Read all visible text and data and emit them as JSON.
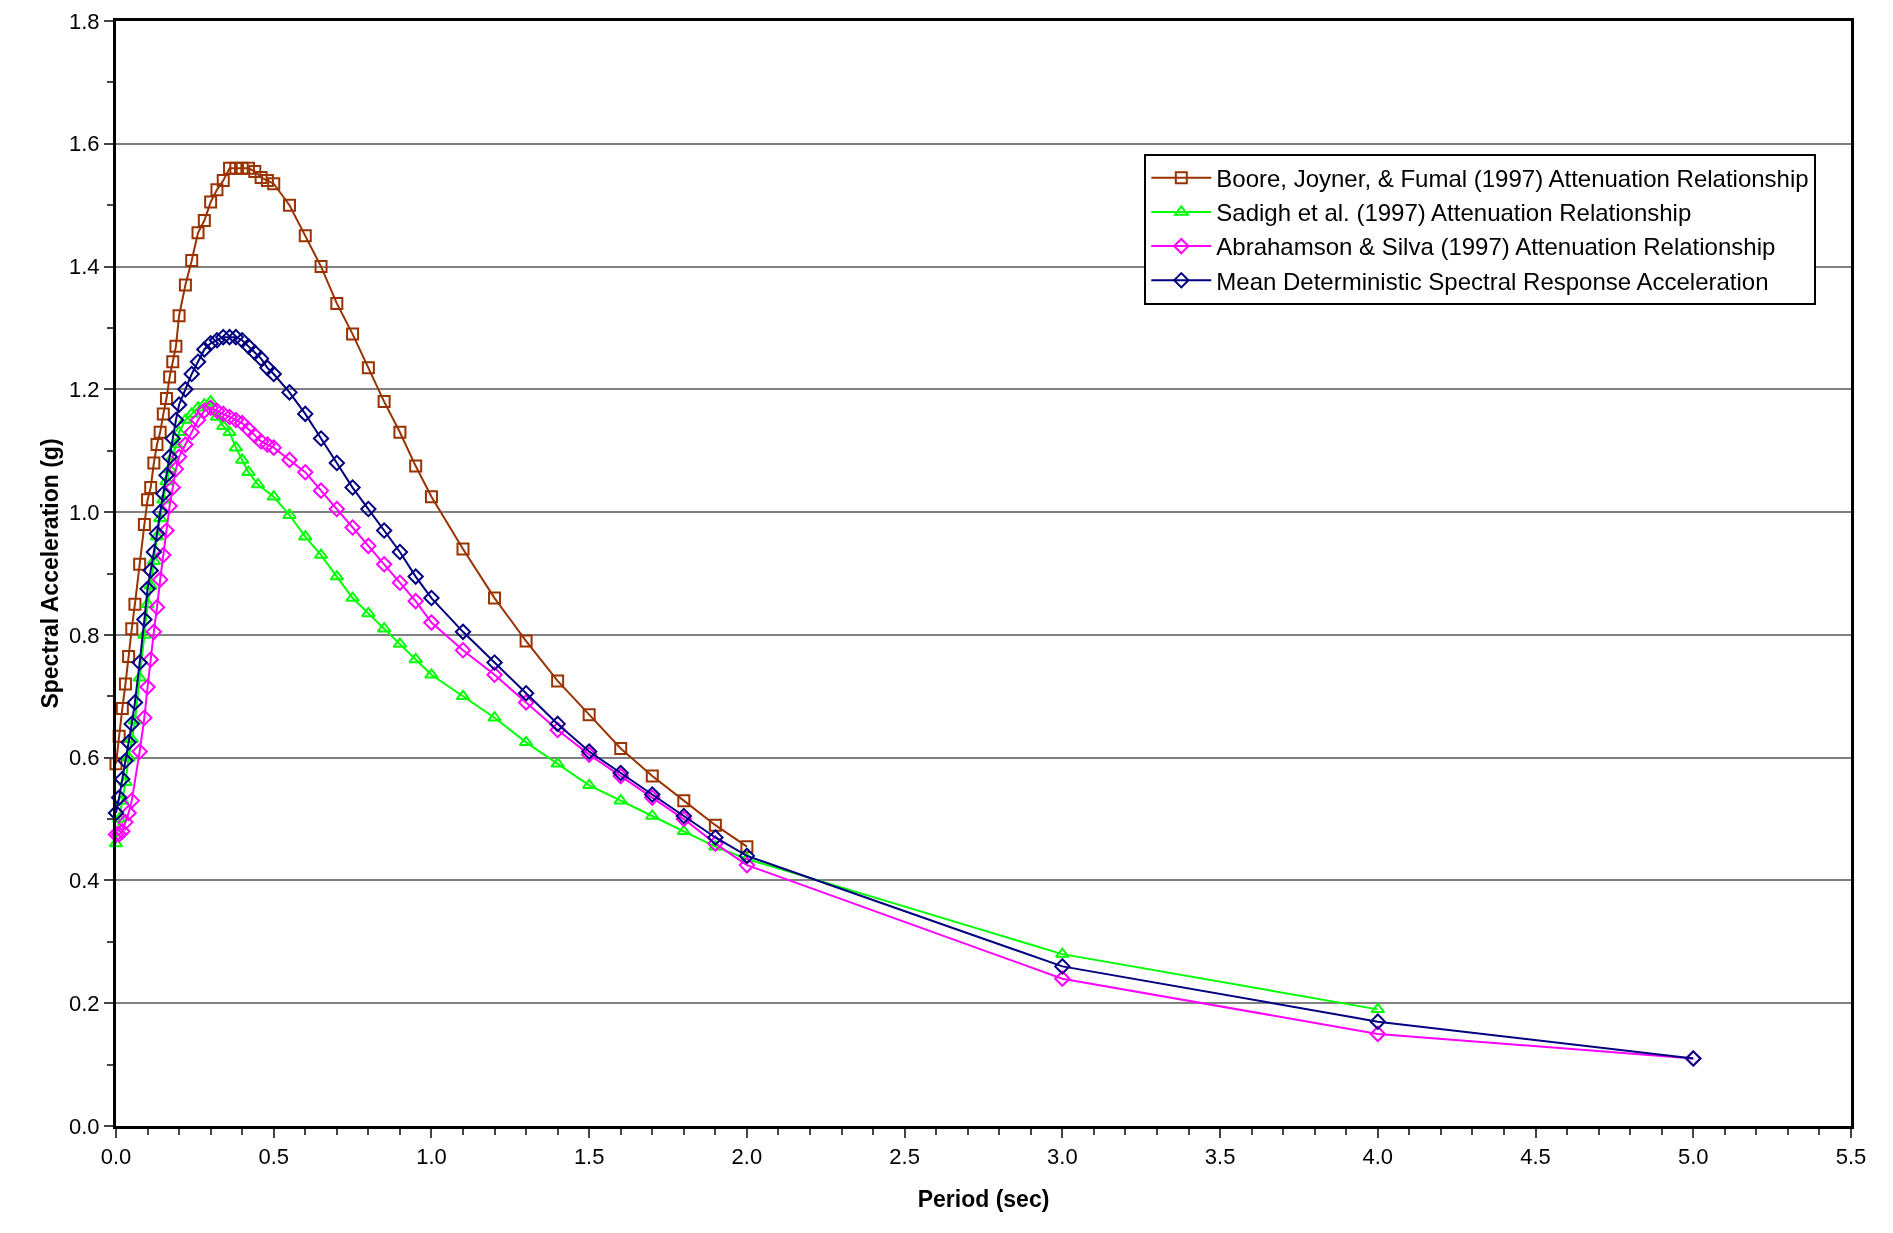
{
  "chart_data": {
    "type": "line",
    "xlabel": "Period (sec)",
    "ylabel": "Spectral Acceleration (g)",
    "xlim": [
      0,
      5.5
    ],
    "xticks": [
      {
        "value": 0,
        "label": "0.0"
      },
      {
        "value": 0.5,
        "label": "0.5"
      },
      {
        "value": 1,
        "label": "1.0"
      },
      {
        "value": 1.5,
        "label": "1.5"
      },
      {
        "value": 2,
        "label": "2.0"
      },
      {
        "value": 2.5,
        "label": "2.5"
      },
      {
        "value": 3,
        "label": "3.0"
      },
      {
        "value": 3.5,
        "label": "3.5"
      },
      {
        "value": 4,
        "label": "4.0"
      },
      {
        "value": 4.5,
        "label": "4.5"
      },
      {
        "value": 5,
        "label": "5.0"
      },
      {
        "value": 5.5,
        "label": "5.5"
      }
    ],
    "ylim": [
      0,
      1.8
    ],
    "yticks": [
      {
        "value": 0,
        "label": "0.0"
      },
      {
        "value": 0.2,
        "label": "0.2"
      },
      {
        "value": 0.4,
        "label": "0.4"
      },
      {
        "value": 0.6,
        "label": "0.6"
      },
      {
        "value": 0.8,
        "label": "0.8"
      },
      {
        "value": 1,
        "label": "1.0"
      },
      {
        "value": 1.2,
        "label": "1.2"
      },
      {
        "value": 1.4,
        "label": "1.4"
      },
      {
        "value": 1.6,
        "label": "1.6"
      },
      {
        "value": 1.8,
        "label": "1.8"
      }
    ],
    "grid": "y",
    "legend": "top right",
    "line_style": "solid",
    "series": [
      {
        "name": "Boore, Joyner, & Fumal (1997) Attenuation Relationship",
        "color": "#993300",
        "marker": "square",
        "x": [
          0,
          0.01,
          0.02,
          0.03,
          0.04,
          0.05,
          0.06,
          0.075,
          0.09,
          0.1,
          0.11,
          0.12,
          0.13,
          0.14,
          0.15,
          0.16,
          0.17,
          0.18,
          0.19,
          0.2,
          0.22,
          0.24,
          0.26,
          0.28,
          0.3,
          0.32,
          0.34,
          0.36,
          0.38,
          0.4,
          0.42,
          0.44,
          0.46,
          0.48,
          0.5,
          0.55,
          0.6,
          0.65,
          0.7,
          0.75,
          0.8,
          0.85,
          0.9,
          0.95,
          1,
          1.1,
          1.2,
          1.3,
          1.4,
          1.5,
          1.6,
          1.7,
          1.8,
          1.9,
          2
        ],
        "values": [
          0.59,
          0.635,
          0.68,
          0.72,
          0.765,
          0.81,
          0.85,
          0.915,
          0.98,
          1.02,
          1.04,
          1.08,
          1.11,
          1.13,
          1.16,
          1.185,
          1.22,
          1.245,
          1.27,
          1.32,
          1.37,
          1.41,
          1.455,
          1.475,
          1.505,
          1.525,
          1.54,
          1.56,
          1.56,
          1.56,
          1.56,
          1.555,
          1.545,
          1.54,
          1.535,
          1.5,
          1.45,
          1.4,
          1.34,
          1.29,
          1.235,
          1.18,
          1.13,
          1.075,
          1.025,
          0.94,
          0.86,
          0.79,
          0.725,
          0.67,
          0.615,
          0.57,
          0.53,
          0.49,
          0.455
        ]
      },
      {
        "name": "Sadigh et al. (1997) Attenuation Relationship",
        "color": "#00ff00",
        "marker": "triangle",
        "x": [
          0,
          0.01,
          0.02,
          0.03,
          0.04,
          0.05,
          0.06,
          0.075,
          0.09,
          0.1,
          0.11,
          0.12,
          0.13,
          0.14,
          0.15,
          0.16,
          0.17,
          0.18,
          0.19,
          0.2,
          0.22,
          0.24,
          0.26,
          0.28,
          0.3,
          0.32,
          0.34,
          0.36,
          0.38,
          0.4,
          0.42,
          0.45,
          0.5,
          0.55,
          0.6,
          0.65,
          0.7,
          0.75,
          0.8,
          0.85,
          0.9,
          0.95,
          1,
          1.1,
          1.2,
          1.3,
          1.4,
          1.5,
          1.6,
          1.7,
          1.8,
          1.9,
          2,
          3,
          4
        ],
        "values": [
          0.46,
          0.5,
          0.53,
          0.56,
          0.6,
          0.63,
          0.66,
          0.73,
          0.8,
          0.85,
          0.88,
          0.92,
          0.96,
          0.99,
          1.02,
          1.05,
          1.07,
          1.09,
          1.11,
          1.13,
          1.15,
          1.16,
          1.17,
          1.175,
          1.18,
          1.155,
          1.14,
          1.13,
          1.105,
          1.085,
          1.065,
          1.045,
          1.025,
          0.995,
          0.96,
          0.93,
          0.895,
          0.86,
          0.835,
          0.81,
          0.785,
          0.76,
          0.735,
          0.7,
          0.665,
          0.625,
          0.59,
          0.555,
          0.53,
          0.505,
          0.48,
          0.455,
          0.435,
          0.28,
          0.19
        ]
      },
      {
        "name": "Abrahamson & Silva (1997) Attenuation Relationship",
        "color": "#ff00ff",
        "marker": "diamond",
        "x": [
          0,
          0.01,
          0.02,
          0.03,
          0.04,
          0.05,
          0.075,
          0.09,
          0.1,
          0.11,
          0.12,
          0.13,
          0.14,
          0.15,
          0.16,
          0.17,
          0.18,
          0.19,
          0.2,
          0.22,
          0.24,
          0.26,
          0.28,
          0.3,
          0.32,
          0.34,
          0.36,
          0.38,
          0.4,
          0.42,
          0.44,
          0.46,
          0.48,
          0.5,
          0.55,
          0.6,
          0.65,
          0.7,
          0.75,
          0.8,
          0.85,
          0.9,
          0.95,
          1,
          1.1,
          1.2,
          1.3,
          1.4,
          1.5,
          1.6,
          1.7,
          1.8,
          1.9,
          2,
          3,
          4,
          5
        ],
        "values": [
          0.475,
          0.475,
          0.48,
          0.495,
          0.51,
          0.53,
          0.61,
          0.665,
          0.715,
          0.76,
          0.805,
          0.845,
          0.89,
          0.93,
          0.97,
          1.01,
          1.04,
          1.07,
          1.09,
          1.11,
          1.13,
          1.15,
          1.165,
          1.17,
          1.165,
          1.16,
          1.155,
          1.15,
          1.145,
          1.135,
          1.125,
          1.115,
          1.11,
          1.105,
          1.085,
          1.065,
          1.035,
          1.005,
          0.975,
          0.945,
          0.915,
          0.885,
          0.855,
          0.82,
          0.775,
          0.735,
          0.69,
          0.645,
          0.605,
          0.57,
          0.535,
          0.5,
          0.46,
          0.425,
          0.24,
          0.15,
          0.11
        ]
      },
      {
        "name": "Mean Deterministic Spectral Response Acceleration",
        "color": "#000080",
        "marker": "diamond",
        "x": [
          0,
          0.01,
          0.02,
          0.03,
          0.04,
          0.05,
          0.06,
          0.075,
          0.09,
          0.1,
          0.11,
          0.12,
          0.13,
          0.14,
          0.15,
          0.16,
          0.17,
          0.18,
          0.19,
          0.2,
          0.22,
          0.24,
          0.26,
          0.28,
          0.3,
          0.32,
          0.34,
          0.36,
          0.38,
          0.4,
          0.42,
          0.44,
          0.46,
          0.48,
          0.5,
          0.55,
          0.6,
          0.65,
          0.7,
          0.75,
          0.8,
          0.85,
          0.9,
          0.95,
          1,
          1.1,
          1.2,
          1.3,
          1.4,
          1.5,
          1.6,
          1.7,
          1.8,
          1.9,
          2,
          3,
          4,
          5
        ],
        "values": [
          0.51,
          0.535,
          0.565,
          0.595,
          0.625,
          0.655,
          0.69,
          0.755,
          0.825,
          0.875,
          0.905,
          0.935,
          0.965,
          1,
          1.03,
          1.06,
          1.09,
          1.12,
          1.15,
          1.175,
          1.2,
          1.225,
          1.245,
          1.265,
          1.275,
          1.28,
          1.285,
          1.285,
          1.285,
          1.28,
          1.27,
          1.26,
          1.25,
          1.235,
          1.225,
          1.195,
          1.16,
          1.12,
          1.08,
          1.04,
          1.005,
          0.97,
          0.935,
          0.895,
          0.86,
          0.805,
          0.755,
          0.705,
          0.655,
          0.61,
          0.575,
          0.54,
          0.505,
          0.47,
          0.44,
          0.26,
          0.17,
          0.11
        ]
      }
    ]
  }
}
